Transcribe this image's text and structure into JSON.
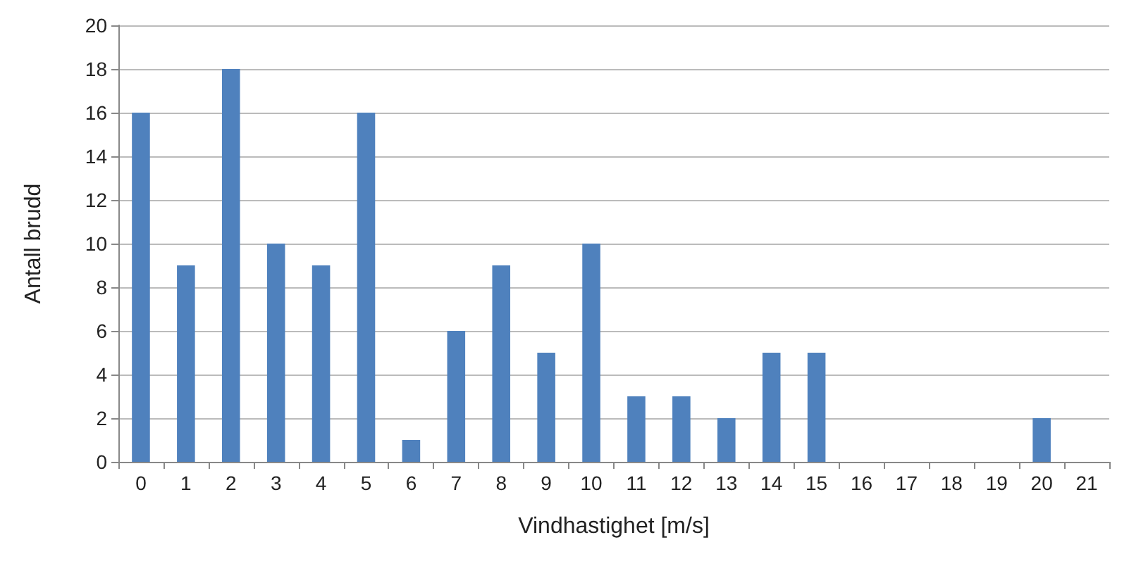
{
  "chart_data": {
    "type": "bar",
    "xlabel": "Vindhastighet [m/s]",
    "ylabel": "Antall brudd",
    "categories": [
      "0",
      "1",
      "2",
      "3",
      "4",
      "5",
      "6",
      "7",
      "8",
      "9",
      "10",
      "11",
      "12",
      "13",
      "14",
      "15",
      "16",
      "17",
      "18",
      "19",
      "20",
      "21"
    ],
    "values": [
      16,
      9,
      18,
      10,
      9,
      16,
      1,
      6,
      9,
      5,
      10,
      3,
      3,
      2,
      5,
      5,
      0,
      0,
      0,
      0,
      2,
      0
    ],
    "color": "#4f81bd",
    "ylim": [
      0,
      20
    ],
    "yticks": [
      0,
      2,
      4,
      6,
      8,
      10,
      12,
      14,
      16,
      18,
      20
    ],
    "grid": "y"
  }
}
